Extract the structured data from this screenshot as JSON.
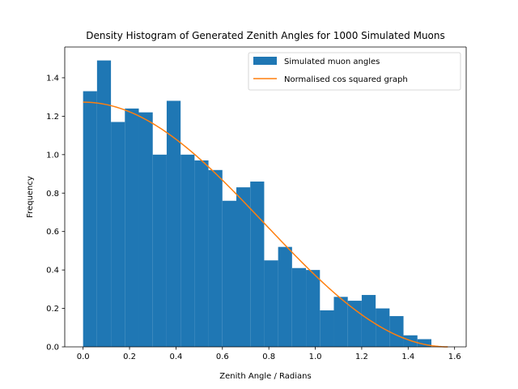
{
  "chart_data": {
    "type": "bar",
    "title": "Density Histogram of Generated Zenith Angles for 1000 Simulated Muons",
    "xlabel": "Zenith Angle / Radians",
    "ylabel": "Frequency",
    "xlim": [
      -0.079,
      1.65
    ],
    "ylim": [
      0.0,
      1.56
    ],
    "x_ticks": [
      0.0,
      0.2,
      0.4,
      0.6,
      0.8,
      1.0,
      1.2,
      1.4,
      1.6
    ],
    "x_tick_labels": [
      "0.0",
      "0.2",
      "0.4",
      "0.6",
      "0.8",
      "1.0",
      "1.2",
      "1.4",
      "1.6"
    ],
    "y_ticks": [
      0.0,
      0.2,
      0.4,
      0.6,
      0.8,
      1.0,
      1.2,
      1.4
    ],
    "y_tick_labels": [
      "0.0",
      "0.2",
      "0.4",
      "0.6",
      "0.8",
      "1.0",
      "1.2",
      "1.4"
    ],
    "grid": false,
    "legend_position": "top-right",
    "histogram": {
      "name": "Simulated muon angles",
      "color": "#1f77b4",
      "bin_start": 0.0,
      "bin_width": 0.06,
      "values": [
        1.33,
        1.49,
        1.17,
        1.24,
        1.22,
        1.0,
        1.28,
        1.0,
        0.97,
        0.92,
        0.76,
        0.83,
        0.86,
        0.45,
        0.52,
        0.41,
        0.4,
        0.19,
        0.26,
        0.24,
        0.27,
        0.2,
        0.16,
        0.06,
        0.04,
        0.0
      ]
    },
    "curve": {
      "name": "Normalised cos squared graph",
      "color": "#ff7f0e",
      "amplitude": 1.2732,
      "x_range": [
        0.0,
        1.5708
      ]
    }
  }
}
